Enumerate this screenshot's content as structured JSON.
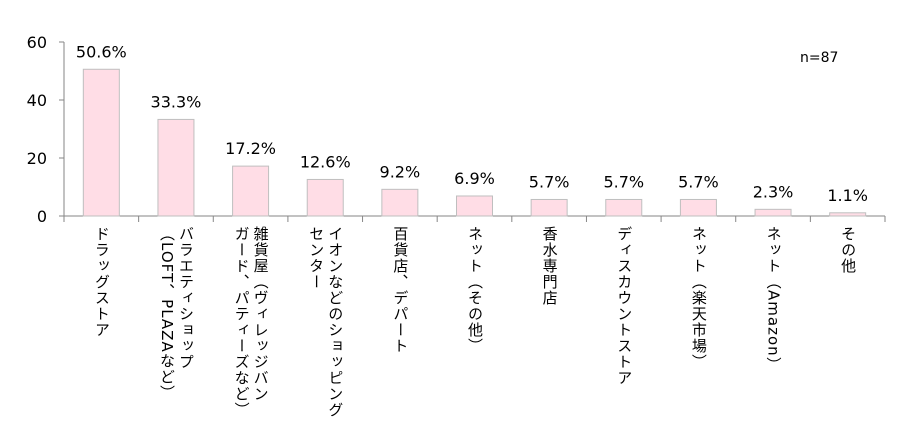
{
  "chart_data": {
    "type": "bar",
    "categories": [
      "ドラッグストア",
      "バラエティショップ\n（LOFT、PLAZAなど）",
      "雑貨屋（ヴィレッジバン\nガード、パティーズなど）",
      "イオンなどのショッピング\nセンター",
      "百貨店、デパート",
      "ネット（その他）",
      "香水専門店",
      "ディスカウントストア",
      "ネット（楽天市場）",
      "ネット（Amazon）",
      "その他"
    ],
    "values": [
      50.6,
      33.3,
      17.2,
      12.6,
      9.2,
      6.9,
      5.7,
      5.7,
      5.7,
      2.3,
      1.1
    ],
    "data_labels": [
      "50.6%",
      "33.3%",
      "17.2%",
      "12.6%",
      "9.2%",
      "6.9%",
      "5.7%",
      "5.7%",
      "5.7%",
      "2.3%",
      "1.1%"
    ],
    "ylim": [
      0,
      60
    ],
    "yticks": [
      0,
      20,
      40,
      60
    ],
    "annotation": "n=87",
    "grid": false,
    "bar_color": "#FFDDE6",
    "bar_border": "#BFBFBF"
  }
}
